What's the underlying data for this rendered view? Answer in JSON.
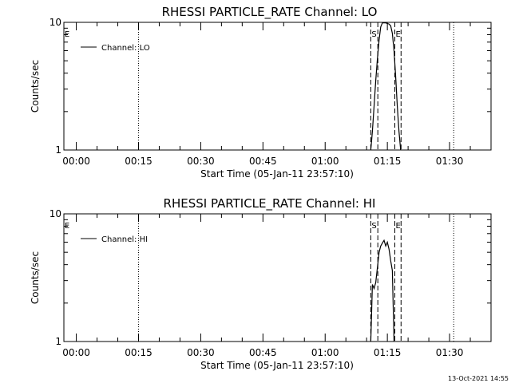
{
  "footer": {
    "timestamp": "13-Oct-2021 14:55"
  },
  "chart_data": [
    {
      "type": "line",
      "title": "RHESSI PARTICLE_RATE Channel: LO",
      "xlabel": "Start Time (05-Jan-11 23:57:10)",
      "ylabel": "Counts/sec",
      "yscale": "log",
      "ylim": [
        1,
        10
      ],
      "ytick_labels": [
        "1",
        "10"
      ],
      "x_unit": "minutes after 00:00",
      "xlim": [
        -3,
        100
      ],
      "xtick_labels": [
        "00:00",
        "00:15",
        "00:30",
        "00:45",
        "01:00",
        "01:15",
        "01:30"
      ],
      "series": [
        {
          "name": "Channel: LO",
          "x": [
            71.0,
            71.4,
            71.8,
            72.2,
            72.6,
            73.0,
            73.4,
            73.8,
            74.2,
            74.6,
            75.0,
            75.4,
            75.8,
            76.2,
            76.6,
            77.0,
            77.4,
            77.8,
            78.2
          ],
          "y": [
            1.0,
            1.4,
            2.2,
            3.5,
            5.2,
            7.3,
            9.2,
            9.9,
            9.9,
            9.9,
            9.8,
            9.7,
            9.4,
            8.2,
            6.0,
            3.8,
            2.2,
            1.4,
            1.0
          ]
        }
      ],
      "vlines_dotted": [
        15.0,
        91.0
      ],
      "vlines_dashed": [
        71.0,
        72.7,
        76.8,
        78.3
      ],
      "markers": [
        {
          "label": "E",
          "x": -3.0
        },
        {
          "label": "S",
          "x": 71.8
        },
        {
          "label": "E",
          "x": 77.6
        }
      ],
      "legend_position": "top-left"
    },
    {
      "type": "line",
      "title": "RHESSI PARTICLE_RATE Channel: HI",
      "xlabel": "Start Time (05-Jan-11 23:57:10)",
      "ylabel": "Counts/sec",
      "yscale": "log",
      "ylim": [
        1,
        10
      ],
      "ytick_labels": [
        "1",
        "10"
      ],
      "x_unit": "minutes after 00:00",
      "xlim": [
        -3,
        100
      ],
      "xtick_labels": [
        "00:00",
        "00:15",
        "00:30",
        "00:45",
        "01:00",
        "01:15",
        "01:30"
      ],
      "series": [
        {
          "name": "Channel: HI",
          "x": [
            71.0,
            71.4,
            71.8,
            72.2,
            72.6,
            73.0,
            73.4,
            73.8,
            74.2,
            74.6,
            75.0,
            75.4,
            75.8,
            76.2,
            76.6
          ],
          "y": [
            1.0,
            2.8,
            2.6,
            2.9,
            3.8,
            5.0,
            5.6,
            5.9,
            6.2,
            5.6,
            6.0,
            5.3,
            4.3,
            3.6,
            1.0
          ]
        }
      ],
      "vlines_dotted": [
        15.0,
        91.0
      ],
      "vlines_dashed": [
        71.0,
        72.7,
        76.8,
        78.3
      ],
      "markers": [
        {
          "label": "E",
          "x": -3.0
        },
        {
          "label": "S",
          "x": 71.8
        },
        {
          "label": "E",
          "x": 77.6
        }
      ],
      "legend_position": "top-left"
    }
  ]
}
